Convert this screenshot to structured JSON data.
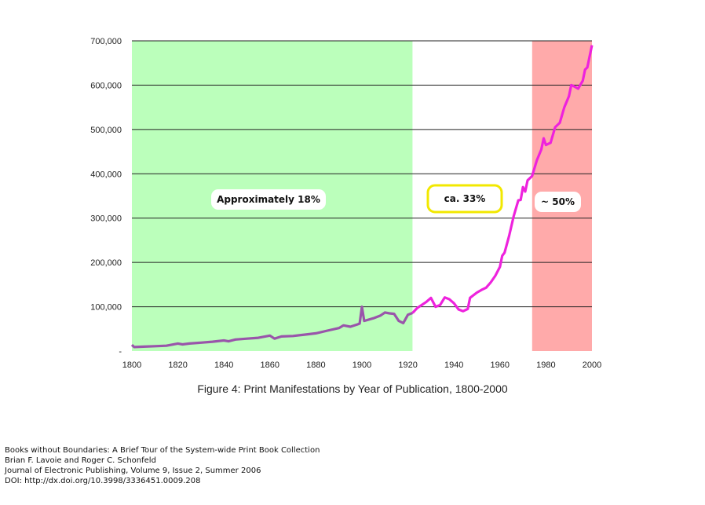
{
  "chart_data": {
    "type": "line",
    "title": "Figure 4: Print Manifestations by Year of Publication, 1800-2000",
    "xlabel": "",
    "ylabel": "",
    "xlim": [
      1800,
      2000
    ],
    "ylim": [
      0,
      700000
    ],
    "x_ticks": [
      1800,
      1820,
      1840,
      1860,
      1880,
      1900,
      1920,
      1940,
      1960,
      1980,
      2000
    ],
    "y_ticks": [
      0,
      100000,
      200000,
      300000,
      400000,
      500000,
      600000,
      700000
    ],
    "y_tick_labels": [
      "-",
      "100,000",
      "200,000",
      "300,000",
      "400,000",
      "500,000",
      "600,000",
      "700,000"
    ],
    "grid": true,
    "regions": [
      {
        "from": 1800,
        "to": 1922,
        "color": "#bbffbb",
        "label": "Approximately 18%"
      },
      {
        "from": 1922,
        "to": 1974,
        "color": "#ffffff",
        "label": "ca. 33%"
      },
      {
        "from": 1974,
        "to": 2001,
        "color": "#ffaaaa",
        "label": "~ 50%"
      }
    ],
    "series": [
      {
        "name": "Print manifestations",
        "color_pre1922": "#9955aa",
        "color_post1922": "#ee22dd",
        "x": [
          1800,
          1801,
          1805,
          1810,
          1815,
          1820,
          1822,
          1825,
          1830,
          1835,
          1840,
          1842,
          1845,
          1850,
          1855,
          1860,
          1862,
          1865,
          1870,
          1875,
          1880,
          1885,
          1890,
          1892,
          1895,
          1898,
          1899,
          1900,
          1901,
          1905,
          1908,
          1910,
          1912,
          1914,
          1916,
          1918,
          1920,
          1921,
          1922,
          1924,
          1926,
          1928,
          1930,
          1932,
          1934,
          1936,
          1938,
          1940,
          1942,
          1944,
          1946,
          1947,
          1948,
          1950,
          1952,
          1954,
          1956,
          1958,
          1960,
          1961,
          1962,
          1964,
          1966,
          1968,
          1969,
          1970,
          1971,
          1972,
          1974,
          1976,
          1978,
          1979,
          1980,
          1982,
          1984,
          1986,
          1988,
          1990,
          1991,
          1992,
          1994,
          1996,
          1997,
          1998,
          2000
        ],
        "values": [
          14000,
          9000,
          10000,
          11000,
          12000,
          17000,
          15000,
          17000,
          19000,
          21000,
          24000,
          22000,
          26000,
          28000,
          30000,
          35000,
          28000,
          33000,
          34000,
          37000,
          40000,
          46000,
          52000,
          58000,
          55000,
          60000,
          62000,
          100000,
          68000,
          74000,
          80000,
          87000,
          85000,
          84000,
          68000,
          63000,
          82000,
          84000,
          86000,
          97000,
          104000,
          111000,
          120000,
          100000,
          104000,
          121000,
          117000,
          108000,
          94000,
          90000,
          95000,
          120000,
          124000,
          132000,
          138000,
          143000,
          155000,
          170000,
          190000,
          215000,
          222000,
          260000,
          305000,
          340000,
          341000,
          370000,
          360000,
          385000,
          395000,
          430000,
          455000,
          480000,
          465000,
          470000,
          505000,
          515000,
          550000,
          575000,
          600000,
          598000,
          592000,
          610000,
          635000,
          640000,
          690000
        ]
      }
    ]
  },
  "caption": "Figure 4: Print Manifestations by Year of Publication, 1800-2000",
  "citation": [
    "Books without Boundaries: A Brief Tour of the System-wide Print Book Collection",
    "Brian F. Lavoie and Roger C. Schonfeld",
    "Journal of Electronic Publishing, Volume 9, Issue 2, Summer 2006",
    "DOI: http://dx.doi.org/10.3998/3336451.0009.208"
  ]
}
